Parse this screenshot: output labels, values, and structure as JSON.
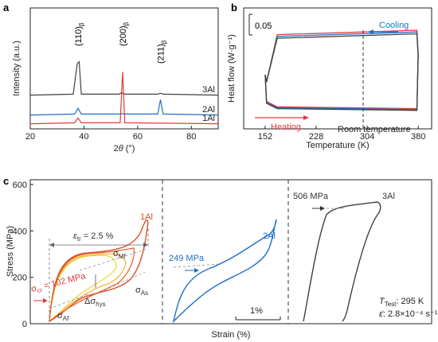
{
  "chart_data": [
    {
      "panel": "a",
      "type": "line",
      "xlabel": "2θ (°)",
      "ylabel": "Intensity (a.u.)",
      "xlim": [
        20,
        90
      ],
      "xticks": [
        "20",
        "40",
        "60",
        "80"
      ],
      "series": [
        {
          "name": "3Al",
          "color": "#404040",
          "x": [
            20,
            36,
            37.5,
            38.2,
            39,
            53,
            54,
            55,
            67.5,
            68.5,
            69.5,
            90
          ],
          "y": [
            0.2,
            0.3,
            3.5,
            3.7,
            0.3,
            0.3,
            0.45,
            0.3,
            0.3,
            0.4,
            0.3,
            0.2
          ]
        },
        {
          "name": "2Al",
          "color": "#1f6fc7",
          "x": [
            20,
            36.5,
            37.8,
            39,
            53.5,
            54.2,
            55,
            67.5,
            68.5,
            69.5,
            90
          ],
          "y": [
            0.2,
            0.3,
            0.9,
            0.3,
            0.3,
            0.35,
            0.3,
            0.3,
            1.8,
            0.3,
            0.2
          ]
        },
        {
          "name": "1Al",
          "color": "#e03a3a",
          "x": [
            20,
            36.5,
            37.8,
            39,
            53.5,
            54.4,
            55.2,
            90
          ],
          "y": [
            0.2,
            0.3,
            0.8,
            0.3,
            0.3,
            5.6,
            0.3,
            0.2
          ]
        }
      ],
      "annotations": [
        "(110)β",
        "(200)β",
        "(211)β"
      ]
    },
    {
      "panel": "b",
      "type": "line",
      "xlabel": "Temperature (K)",
      "ylabel": "Heat flow (W·g⁻¹)",
      "xlim": [
        120,
        400
      ],
      "xticks": [
        "152",
        "228",
        "304",
        "380"
      ],
      "scale_bar": "0.05",
      "labels": {
        "cooling": "Cooling",
        "heating": "Heating",
        "room_temperature": "Room temperature"
      },
      "room_temperature_K": 295,
      "series": [
        {
          "name": "",
          "color": "#e03a3a",
          "x": [
            152,
            154,
            170,
            378,
            380,
            378,
            170,
            154,
            152
          ],
          "y": [
            0.5,
            0.42,
            0.95,
            1.0,
            0.72,
            0.12,
            0.14,
            0.2,
            0.5
          ]
        },
        {
          "name": "",
          "color": "#1f6fc7",
          "x": [
            152,
            154,
            170,
            378,
            380,
            378,
            170,
            154,
            152
          ],
          "y": [
            0.5,
            0.42,
            0.93,
            0.98,
            0.72,
            0.11,
            0.13,
            0.19,
            0.5
          ]
        },
        {
          "name": "",
          "color": "#404040",
          "x": [
            152,
            154,
            170,
            378,
            380,
            378,
            170,
            154,
            152
          ],
          "y": [
            0.5,
            0.42,
            0.91,
            0.96,
            0.72,
            0.1,
            0.12,
            0.18,
            0.5
          ]
        }
      ]
    },
    {
      "panel": "c",
      "type": "line",
      "xlabel": "Strain (%)",
      "ylabel": "Stress (MPa)",
      "ylim": [
        0,
        600
      ],
      "yticks": [
        "0",
        "200",
        "400",
        "600"
      ],
      "scale_bar": "1%",
      "labels": {
        "one_al": "1Al",
        "two_al": "2Al",
        "three_al": "3Al",
        "etr": "ε",
        "etr_sub": "tr",
        "etr_value": " = 2.5 %",
        "scr": "σ",
        "scr_sub": "cr",
        "scr_value": " = 102 MPa",
        "smf": "σ",
        "smf_sub": "Mf",
        "sas": "σ",
        "sas_sub": "As",
        "saf": "σ",
        "saf_sub": "Af",
        "dsh": "Δσ",
        "dsh_sub": "hys",
        "mpa249": "249 MPa",
        "mpa506": "506 MPa",
        "ttest": "T",
        "ttest_sub": "Test",
        "ttest_value": ": 295 K",
        "erate": "ε̇",
        "erate_value": ": 2.8×10⁻⁴ s⁻¹"
      },
      "series": [
        {
          "name": "1Al",
          "color": "#d94f2a",
          "peak_stress": 440,
          "critical_stress": 102
        },
        {
          "name": "2Al",
          "color": "#1f6fc7",
          "peak_stress": 455,
          "critical_stress": 249
        },
        {
          "name": "3Al",
          "color": "#404040",
          "peak_stress": 540,
          "critical_stress": 506
        }
      ]
    }
  ]
}
